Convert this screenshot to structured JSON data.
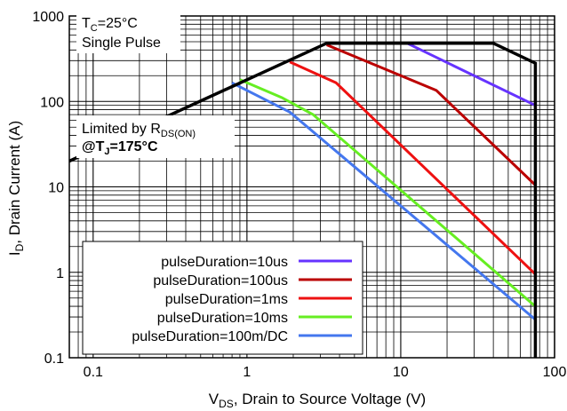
{
  "chart_data": {
    "type": "line",
    "title": "",
    "xlabel": "V",
    "xlabel_sub": "DS",
    "xlabel_rest": ", Drain to Source Voltage (V)",
    "ylabel": "I",
    "ylabel_sub": "D",
    "ylabel_rest": ", Drain Current (A)",
    "xscale": "log",
    "yscale": "log",
    "xlim": [
      0.07,
      100
    ],
    "ylim": [
      0.1,
      1000
    ],
    "grid": true,
    "legend_position": "bottom-left",
    "xticks": [
      "0.1",
      "1",
      "10",
      "100"
    ],
    "xtick_values": [
      0.1,
      1,
      10,
      100
    ],
    "yticks": [
      "0.1",
      "1",
      "10",
      "100",
      "1000"
    ],
    "ytick_values": [
      0.1,
      1,
      10,
      100,
      1000
    ],
    "annotations": {
      "tc_main": "T",
      "tc_sub": "C",
      "tc_rest": "=25°C",
      "pulse": "Single Pulse",
      "limited_main": "Limited by R",
      "limited_sub": "DS(ON)",
      "tj_main": "@T",
      "tj_sub": "J",
      "tj_rest": "=175°C"
    },
    "boundary": {
      "color": "#000000",
      "x": [
        0.07,
        3.3,
        40,
        75,
        75
      ],
      "y": [
        20,
        480,
        480,
        280,
        0.1
      ]
    },
    "series": [
      {
        "name": "pulseDuration=10us",
        "color": "#6633ff",
        "x": [
          3.3,
          11,
          75
        ],
        "y": [
          480,
          480,
          90
        ]
      },
      {
        "name": "pulseDuration=100us",
        "color": "#bb0000",
        "x": [
          3.3,
          17,
          75
        ],
        "y": [
          460,
          135,
          10.5
        ]
      },
      {
        "name": "pulseDuration=1ms",
        "color": "#ee1111",
        "x": [
          1.9,
          3.8,
          75
        ],
        "y": [
          290,
          165,
          0.95
        ]
      },
      {
        "name": "pulseDuration=10ms",
        "color": "#66ee22",
        "x": [
          0.9,
          1.7,
          2.7,
          75
        ],
        "y": [
          180,
          110,
          70,
          0.4
        ]
      },
      {
        "name": "pulseDuration=100m/DC",
        "color": "#4477ee",
        "x": [
          0.8,
          1.9,
          75
        ],
        "y": [
          165,
          75,
          0.28
        ]
      }
    ]
  }
}
